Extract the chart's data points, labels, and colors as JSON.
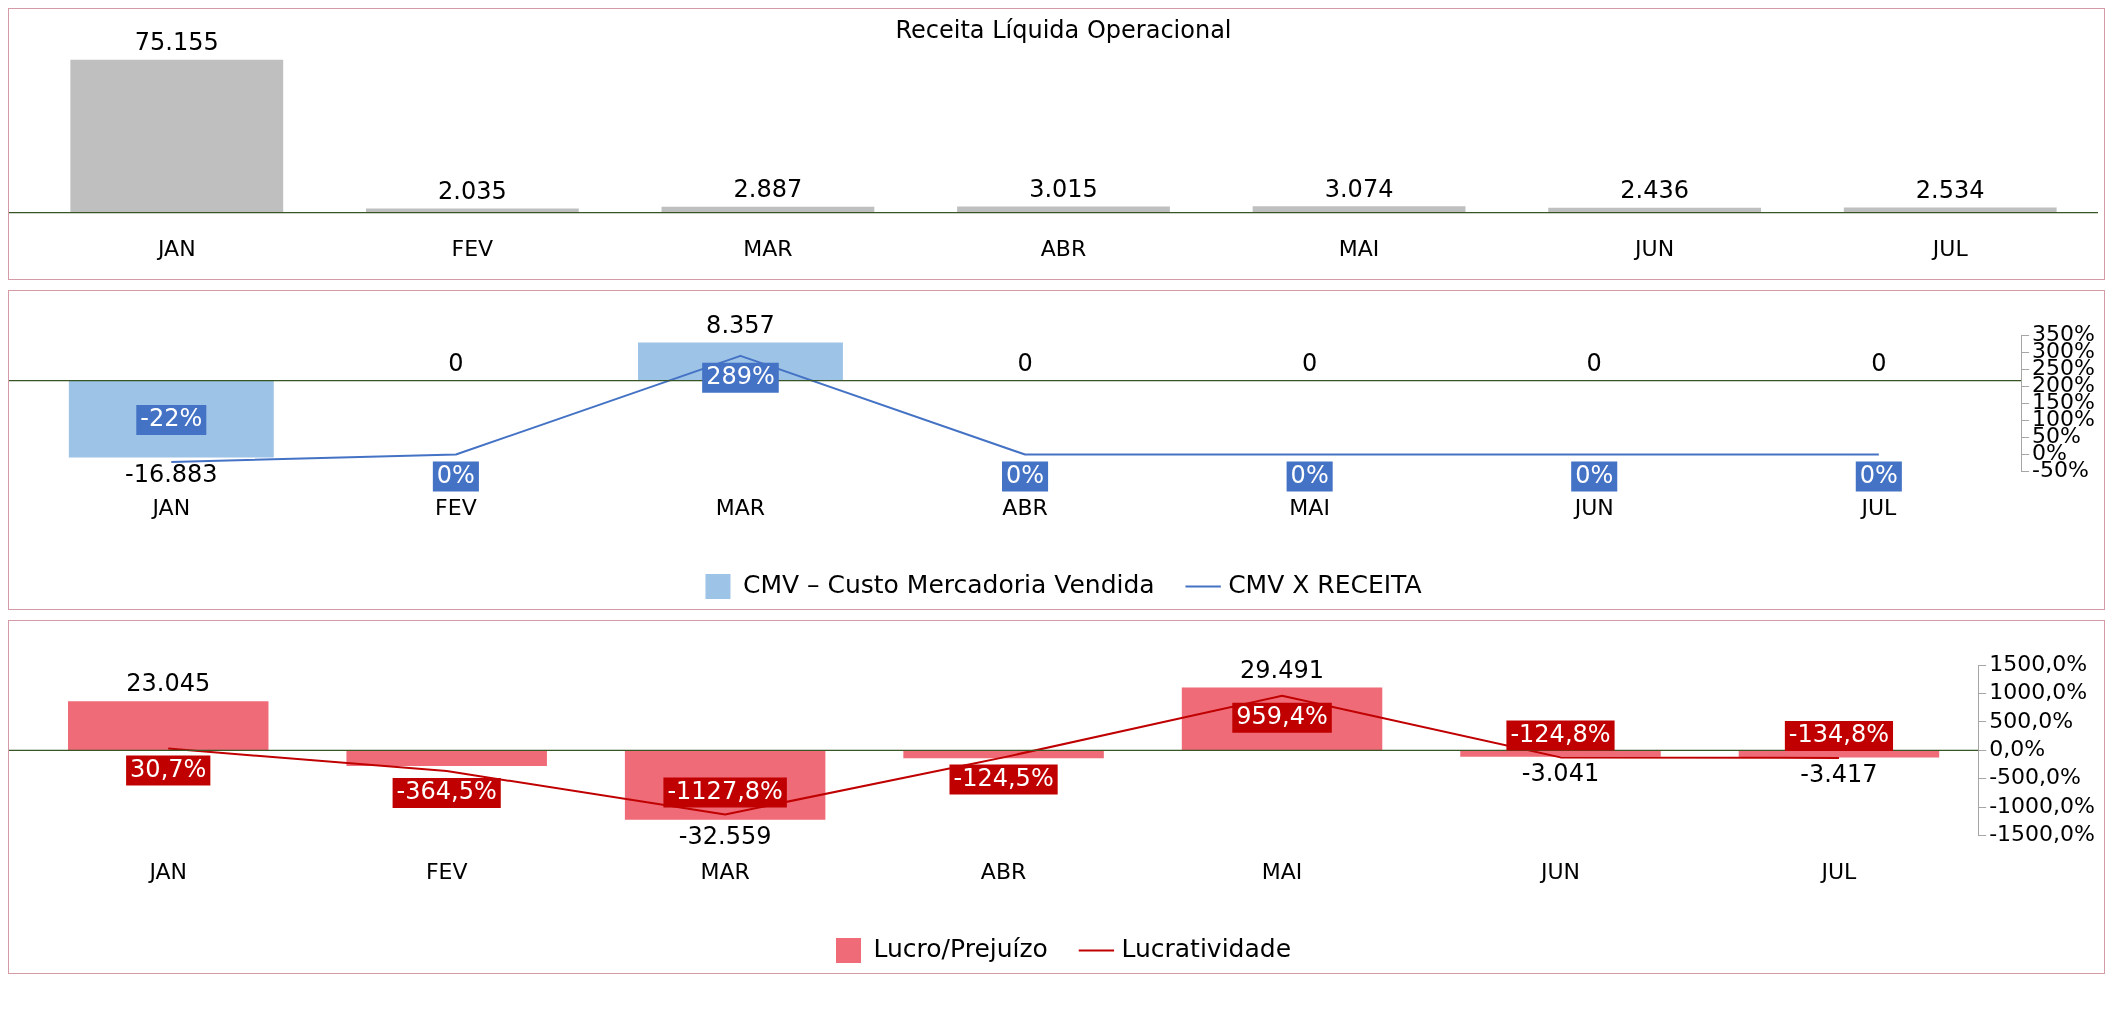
{
  "chart_data": [
    {
      "type": "bar",
      "title": "Receita Líquida Operacional",
      "categories": [
        "JAN",
        "FEV",
        "MAR",
        "ABR",
        "MAI",
        "JUN",
        "JUL"
      ],
      "series": [
        {
          "color": "#bfbfbf",
          "values": [
            75155,
            2035,
            2887,
            3015,
            3074,
            2436,
            2534
          ],
          "value_labels": [
            "75.155",
            "2.035",
            "2.887",
            "3.015",
            "3.074",
            "2.436",
            "2.534"
          ]
        }
      ]
    },
    {
      "type": "bar",
      "categories": [
        "JAN",
        "FEV",
        "MAR",
        "ABR",
        "MAI",
        "JUN",
        "JUL"
      ],
      "ylim": [
        -20000,
        10000
      ],
      "y2lim": [
        -50,
        350
      ],
      "y2ticks": [
        {
          "value": -50,
          "label": "-50%"
        },
        {
          "value": 0,
          "label": "0%"
        },
        {
          "value": 50,
          "label": "50%"
        },
        {
          "value": 100,
          "label": "100%"
        },
        {
          "value": 150,
          "label": "150%"
        },
        {
          "value": 200,
          "label": "200%"
        },
        {
          "value": 250,
          "label": "250%"
        },
        {
          "value": 300,
          "label": "300%"
        },
        {
          "value": 350,
          "label": "350%"
        }
      ],
      "legend": "bottom",
      "series": [
        {
          "name": "CMV – Custo Mercadoria Vendida",
          "color": "#9dc3e6",
          "values": [
            -16883,
            0,
            8357,
            0,
            0,
            0,
            0
          ],
          "value_labels": [
            "-16.883",
            "0",
            "8.357",
            "0",
            "0",
            "0",
            "0"
          ]
        },
        {
          "name": "CMV X RECEITA",
          "type": "line",
          "axis": "y2",
          "color": "#4472c4",
          "values": [
            -22,
            0,
            289,
            0,
            0,
            0,
            0
          ],
          "value_labels": [
            "-22%",
            "0%",
            "289%",
            "0%",
            "0%",
            "0%",
            "0%"
          ]
        }
      ]
    },
    {
      "type": "bar",
      "categories": [
        "JAN",
        "FEV",
        "MAR",
        "ABR",
        "MAI",
        "JUN",
        "JUL"
      ],
      "ylim": [
        -40000,
        40000
      ],
      "y2lim": [
        -1500,
        1500
      ],
      "y2ticks": [
        {
          "value": -1500,
          "label": "-1500,0%"
        },
        {
          "value": -1000,
          "label": "-1000,0%"
        },
        {
          "value": -500,
          "label": "-500,0%"
        },
        {
          "value": 0,
          "label": "0,0%"
        },
        {
          "value": 500,
          "label": "500,0%"
        },
        {
          "value": 1000,
          "label": "1000,0%"
        },
        {
          "value": 1500,
          "label": "1500,0%"
        }
      ],
      "legend": "bottom",
      "series": [
        {
          "name": "Lucro/Prejuízo",
          "color": "#ee6b77",
          "values": [
            23045,
            -7418,
            -32559,
            -3754,
            29491,
            -3041,
            -3417
          ],
          "value_labels": [
            "23.045",
            null,
            "-32.559",
            null,
            "29.491",
            "-3.041",
            "-3.417"
          ]
        },
        {
          "name": "Lucratividade",
          "type": "line",
          "axis": "y2",
          "color": "#c00000",
          "values": [
            30.7,
            -364.5,
            -1127.8,
            -124.5,
            959.4,
            -124.8,
            -134.8
          ],
          "value_labels": [
            "30,7%",
            "-364,5%",
            "-1127,8%",
            "-124,5%",
            "959,4%",
            "-124,8%",
            "-134,8%"
          ]
        }
      ]
    }
  ]
}
